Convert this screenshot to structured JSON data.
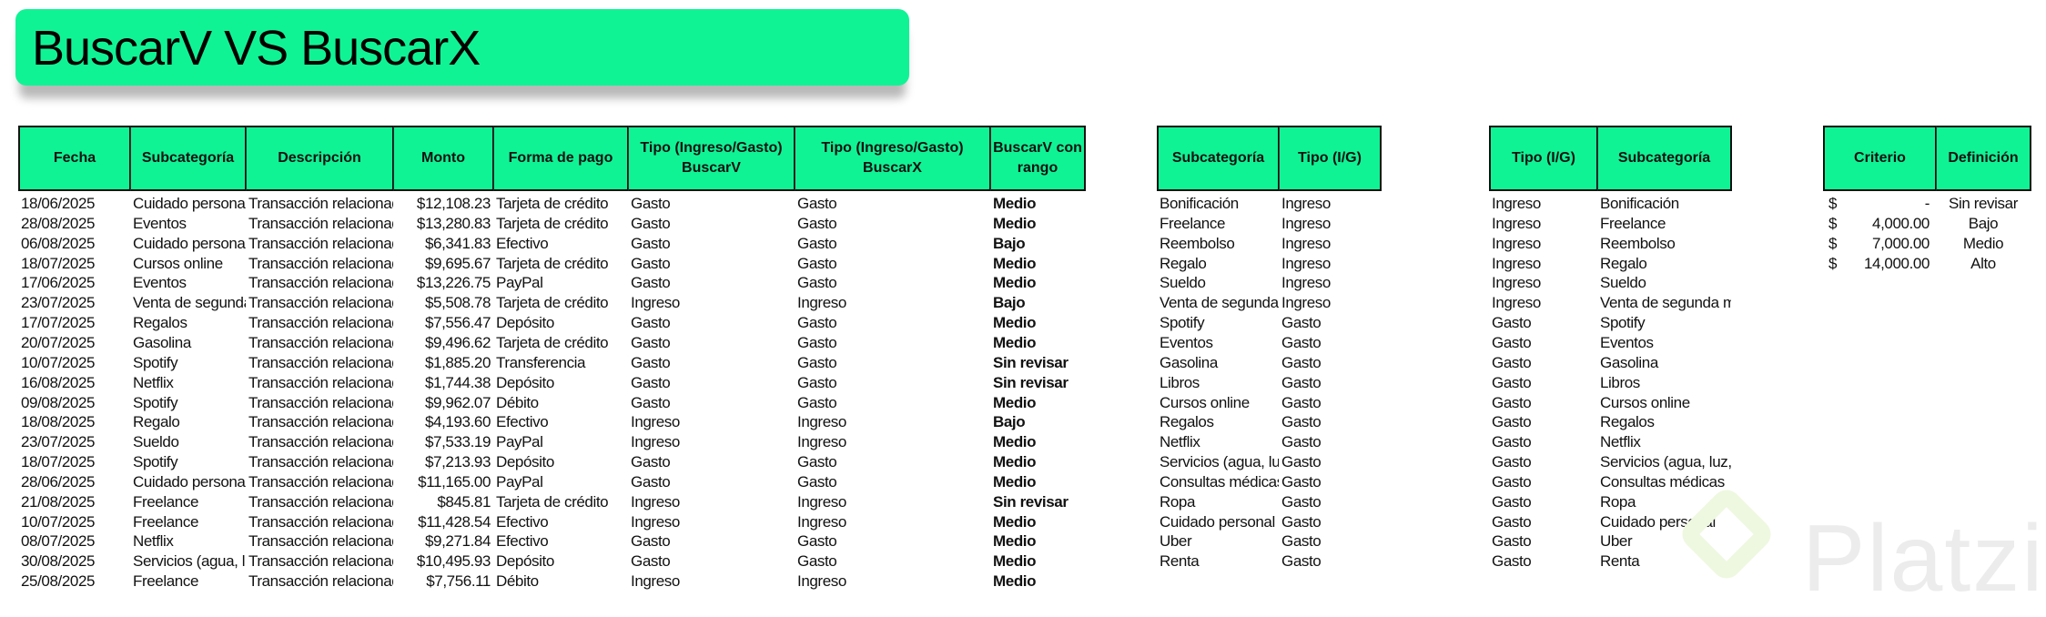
{
  "title": "BuscarV VS BuscarX",
  "colors": {
    "header_fill": "#10F395",
    "title_fill": "#10F395"
  },
  "main_table": {
    "headers": [
      "Fecha",
      "Subcategoría",
      "Descripción",
      "Monto",
      "Forma de pago",
      "Tipo (Ingreso/Gasto) BuscarV",
      "Tipo (Ingreso/Gasto) BuscarX",
      "BuscarV con rango"
    ],
    "rows": [
      [
        "18/06/2025",
        "Cuidado personal",
        "Transacción relacionada",
        "$12,108.23",
        "Tarjeta de crédito",
        "Gasto",
        "Gasto",
        "Medio"
      ],
      [
        "28/08/2025",
        "Eventos",
        "Transacción relacionada",
        "$13,280.83",
        "Tarjeta de crédito",
        "Gasto",
        "Gasto",
        "Medio"
      ],
      [
        "06/08/2025",
        "Cuidado personal",
        "Transacción relacionada",
        "$6,341.83",
        "Efectivo",
        "Gasto",
        "Gasto",
        "Bajo"
      ],
      [
        "18/07/2025",
        "Cursos online",
        "Transacción relacionada",
        "$9,695.67",
        "Tarjeta de crédito",
        "Gasto",
        "Gasto",
        "Medio"
      ],
      [
        "17/06/2025",
        "Eventos",
        "Transacción relacionada",
        "$13,226.75",
        "PayPal",
        "Gasto",
        "Gasto",
        "Medio"
      ],
      [
        "23/07/2025",
        "Venta de segunda mano",
        "Transacción relacionada",
        "$5,508.78",
        "Tarjeta de crédito",
        "Ingreso",
        "Ingreso",
        "Bajo"
      ],
      [
        "17/07/2025",
        "Regalos",
        "Transacción relacionada",
        "$7,556.47",
        "Depósito",
        "Gasto",
        "Gasto",
        "Medio"
      ],
      [
        "20/07/2025",
        "Gasolina",
        "Transacción relacionada",
        "$9,496.62",
        "Tarjeta de crédito",
        "Gasto",
        "Gasto",
        "Medio"
      ],
      [
        "10/07/2025",
        "Spotify",
        "Transacción relacionada",
        "$1,885.20",
        "Transferencia",
        "Gasto",
        "Gasto",
        "Sin revisar"
      ],
      [
        "16/08/2025",
        "Netflix",
        "Transacción relacionada",
        "$1,744.38",
        "Depósito",
        "Gasto",
        "Gasto",
        "Sin revisar"
      ],
      [
        "09/08/2025",
        "Spotify",
        "Transacción relacionada",
        "$9,962.07",
        "Débito",
        "Gasto",
        "Gasto",
        "Medio"
      ],
      [
        "18/08/2025",
        "Regalo",
        "Transacción relacionada",
        "$4,193.60",
        "Efectivo",
        "Ingreso",
        "Ingreso",
        "Bajo"
      ],
      [
        "23/07/2025",
        "Sueldo",
        "Transacción relacionada",
        "$7,533.19",
        "PayPal",
        "Ingreso",
        "Ingreso",
        "Medio"
      ],
      [
        "18/07/2025",
        "Spotify",
        "Transacción relacionada",
        "$7,213.93",
        "Depósito",
        "Gasto",
        "Gasto",
        "Medio"
      ],
      [
        "28/06/2025",
        "Cuidado personal",
        "Transacción relacionada",
        "$11,165.00",
        "PayPal",
        "Gasto",
        "Gasto",
        "Medio"
      ],
      [
        "21/08/2025",
        "Freelance",
        "Transacción relacionada",
        "$845.81",
        "Tarjeta de crédito",
        "Ingreso",
        "Ingreso",
        "Sin revisar"
      ],
      [
        "10/07/2025",
        "Freelance",
        "Transacción relacionada",
        "$11,428.54",
        "Efectivo",
        "Ingreso",
        "Ingreso",
        "Medio"
      ],
      [
        "08/07/2025",
        "Netflix",
        "Transacción relacionada",
        "$9,271.84",
        "Efectivo",
        "Gasto",
        "Gasto",
        "Medio"
      ],
      [
        "30/08/2025",
        "Servicios (agua, luz, gas)",
        "Transacción relacionada",
        "$10,495.93",
        "Depósito",
        "Gasto",
        "Gasto",
        "Medio"
      ],
      [
        "25/08/2025",
        "Freelance",
        "Transacción relacionada",
        "$7,756.11",
        "Débito",
        "Ingreso",
        "Ingreso",
        "Medio"
      ]
    ]
  },
  "lookup_v": {
    "headers": [
      "Subcategoría",
      "Tipo (I/G)"
    ],
    "rows": [
      [
        "Bonificación",
        "Ingreso"
      ],
      [
        "Freelance",
        "Ingreso"
      ],
      [
        "Reembolso",
        "Ingreso"
      ],
      [
        "Regalo",
        "Ingreso"
      ],
      [
        "Sueldo",
        "Ingreso"
      ],
      [
        "Venta de segunda mano",
        "Ingreso"
      ],
      [
        "Spotify",
        "Gasto"
      ],
      [
        "Eventos",
        "Gasto"
      ],
      [
        "Gasolina",
        "Gasto"
      ],
      [
        "Libros",
        "Gasto"
      ],
      [
        "Cursos online",
        "Gasto"
      ],
      [
        "Regalos",
        "Gasto"
      ],
      [
        "Netflix",
        "Gasto"
      ],
      [
        "Servicios (agua, luz, gas)",
        "Gasto"
      ],
      [
        "Consultas médicas",
        "Gasto"
      ],
      [
        "Ropa",
        "Gasto"
      ],
      [
        "Cuidado personal",
        "Gasto"
      ],
      [
        "Uber",
        "Gasto"
      ],
      [
        "Renta",
        "Gasto"
      ]
    ]
  },
  "lookup_x": {
    "headers": [
      "Tipo (I/G)",
      "Subcategoría"
    ],
    "rows": [
      [
        "Ingreso",
        "Bonificación"
      ],
      [
        "Ingreso",
        "Freelance"
      ],
      [
        "Ingreso",
        "Reembolso"
      ],
      [
        "Ingreso",
        "Regalo"
      ],
      [
        "Ingreso",
        "Sueldo"
      ],
      [
        "Ingreso",
        "Venta de segunda mano"
      ],
      [
        "Gasto",
        "Spotify"
      ],
      [
        "Gasto",
        "Eventos"
      ],
      [
        "Gasto",
        "Gasolina"
      ],
      [
        "Gasto",
        "Libros"
      ],
      [
        "Gasto",
        "Cursos online"
      ],
      [
        "Gasto",
        "Regalos"
      ],
      [
        "Gasto",
        "Netflix"
      ],
      [
        "Gasto",
        "Servicios (agua, luz, gas)"
      ],
      [
        "Gasto",
        "Consultas médicas"
      ],
      [
        "Gasto",
        "Ropa"
      ],
      [
        "Gasto",
        "Cuidado personal"
      ],
      [
        "Gasto",
        "Uber"
      ],
      [
        "Gasto",
        "Renta"
      ]
    ]
  },
  "criteria": {
    "headers": [
      "Criterio",
      "Definición"
    ],
    "currency": "$",
    "rows": [
      [
        "-",
        "Sin revisar"
      ],
      [
        "4,000.00",
        "Bajo"
      ],
      [
        "7,000.00",
        "Medio"
      ],
      [
        "14,000.00",
        "Alto"
      ]
    ]
  },
  "watermark": {
    "text": "Platzi"
  }
}
